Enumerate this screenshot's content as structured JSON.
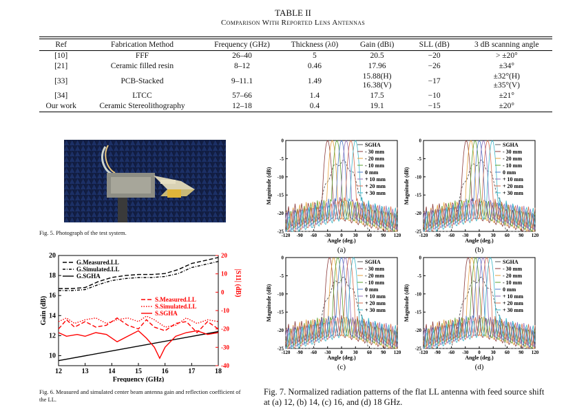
{
  "table": {
    "label": "TABLE II",
    "title": "Comparison With Reported Lens Antennas",
    "headers": [
      "Ref",
      "Fabrication Method",
      "Frequency (GHz)",
      "Thickness (λ0)",
      "Gain (dBi)",
      "SLL (dB)",
      "3 dB scanning angle"
    ],
    "rows": [
      {
        "ref": "[10]",
        "method": "FFF",
        "freq": "26–40",
        "thick": "5",
        "gain": "20.5",
        "sll": "−20",
        "scan": "> ±20°"
      },
      {
        "ref": "[21]",
        "method": "Ceramic filled resin",
        "freq": "8–12",
        "thick": "0.46",
        "gain": "17.96",
        "sll": "−26",
        "scan": "±34°"
      },
      {
        "ref": "[33]",
        "method": "PCB-Stacked",
        "freq": "9–11.1",
        "thick": "1.49",
        "gain": "15.88(H)",
        "gain2": "16.38(V)",
        "sll": "−17",
        "scan": "±32°(H)",
        "scan2": "±35°(V)"
      },
      {
        "ref": "[34]",
        "method": "LTCC",
        "freq": "57–66",
        "thick": "1.4",
        "gain": "17.5",
        "sll": "−10",
        "scan": "±21°"
      },
      {
        "ref": "Our work",
        "method": "Ceramic Stereolithography",
        "freq": "12–18",
        "thick": "0.4",
        "gain": "19.1",
        "sll": "−15",
        "scan": "±20°"
      }
    ]
  },
  "fig5": {
    "caption": "Fig. 5.    Photograph of the test system."
  },
  "fig6": {
    "caption": "Fig. 6.   Measured and simulated center beam antenna gain and reflection coefficient of the LL."
  },
  "fig7": {
    "caption": "Fig. 7.    Normalized radiation patterns of the flat LL antenna with feed source shift at (a) 12, (b) 14, (c) 16, and (d) 18 GHz.",
    "panel_labels": [
      "(a)",
      "(b)",
      "(c)",
      "(d)"
    ]
  },
  "chart_data": [
    {
      "type": "line",
      "xlabel": "Frequency (GHz)",
      "ylabel": "Gain (dB)",
      "ylabel_right": "|S11| (dB)",
      "xlim": [
        12,
        18
      ],
      "ylim": [
        9,
        20
      ],
      "ylim_right": [
        -40,
        20
      ],
      "xticks": [
        12,
        13,
        14,
        15,
        16,
        17,
        18
      ],
      "yticks": [
        10,
        12,
        14,
        16,
        18,
        20
      ],
      "yticks_right": [
        -40,
        -30,
        -20,
        -10,
        0,
        10,
        20
      ],
      "colors": {
        "gain": "#000000",
        "s11": "#ff0000"
      },
      "series": [
        {
          "name": "G.Measured.LL",
          "axis": "left",
          "style": "dash",
          "x": [
            12,
            12.5,
            13,
            13.5,
            14,
            14.5,
            15,
            15.5,
            16,
            16.5,
            17,
            17.5,
            18
          ],
          "y": [
            16.7,
            16.7,
            16.8,
            17.4,
            17.8,
            18.0,
            18.1,
            18.1,
            18.2,
            18.6,
            19.2,
            19.5,
            19.8
          ]
        },
        {
          "name": "G.Simulated.LL",
          "axis": "left",
          "style": "dashdot",
          "x": [
            12,
            12.5,
            13,
            13.5,
            14,
            14.5,
            15,
            15.5,
            16,
            16.5,
            17,
            17.5,
            18
          ],
          "y": [
            16.5,
            16.5,
            16.6,
            17.1,
            17.5,
            17.7,
            17.8,
            17.8,
            17.9,
            18.2,
            18.8,
            19.1,
            19.4
          ]
        },
        {
          "name": "G.SGHA",
          "axis": "left",
          "style": "solid",
          "x": [
            12,
            18
          ],
          "y": [
            9.5,
            12.4
          ]
        },
        {
          "name": "S.Measured.LL",
          "axis": "right",
          "style": "dash",
          "x": [
            12,
            12.3,
            12.6,
            13,
            13.4,
            13.8,
            14.2,
            14.6,
            15,
            15.3,
            15.6,
            16,
            16.4,
            16.8,
            17.2,
            17.6,
            18
          ],
          "y": [
            -20,
            -15,
            -19,
            -16,
            -19,
            -18,
            -14,
            -18,
            -20,
            -15,
            -19,
            -21,
            -17,
            -16,
            -22,
            -16,
            -20
          ]
        },
        {
          "name": "S.Simulated.LL",
          "axis": "right",
          "style": "dot",
          "x": [
            12,
            12.3,
            12.6,
            13,
            13.4,
            13.8,
            14.2,
            14.6,
            15,
            15.3,
            15.6,
            16,
            16.4,
            16.8,
            17.2,
            17.6,
            18
          ],
          "y": [
            -16,
            -14,
            -17,
            -15,
            -14,
            -17,
            -15,
            -14,
            -16,
            -13,
            -15,
            -19,
            -18,
            -14,
            -17,
            -15,
            -16
          ]
        },
        {
          "name": "S.SGHA",
          "axis": "right",
          "style": "solid",
          "x": [
            12,
            12.3,
            12.7,
            13,
            13.4,
            13.8,
            14.2,
            14.6,
            15,
            15.3,
            15.6,
            15.8,
            16,
            16.4,
            16.8,
            17.2,
            17.6,
            18
          ],
          "y": [
            -22,
            -24,
            -23,
            -24,
            -22,
            -23,
            -27,
            -24,
            -21,
            -25,
            -30,
            -36,
            -30,
            -24,
            -22,
            -21,
            -23,
            -22
          ]
        }
      ]
    },
    {
      "type": "line",
      "panel": "(a)",
      "xlabel": "Angle (deg.)",
      "ylabel": "Magnitude (dB)",
      "xlim": [
        -120,
        120
      ],
      "ylim": [
        -25,
        0
      ],
      "xticks": [
        -120,
        -90,
        -60,
        -30,
        0,
        30,
        60,
        90,
        120
      ],
      "yticks": [
        0,
        -5,
        -10,
        -15,
        -20,
        -25
      ],
      "peak_angles": [
        -30,
        -20,
        -10,
        0,
        10,
        20,
        30
      ],
      "legend": [
        "SGHA",
        "- 30 mm",
        "- 20 mm",
        "- 10 mm",
        "0 mm",
        "+ 10 mm",
        "+ 20 mm",
        "+ 30 mm"
      ],
      "colors": [
        "#555555",
        "#8b3a3a",
        "#e6a23c",
        "#5aa02c",
        "#4c78c8",
        "#8e6bb8",
        "#d56a4a",
        "#3ab5c6"
      ]
    },
    {
      "type": "line",
      "panel": "(b)",
      "xlabel": "Angle (deg.)",
      "ylabel": "Magnitude (dB)",
      "xlim": [
        -120,
        120
      ],
      "ylim": [
        -25,
        0
      ],
      "xticks": [
        -120,
        -90,
        -60,
        -30,
        0,
        30,
        60,
        90,
        120
      ],
      "yticks": [
        0,
        -5,
        -10,
        -15,
        -20,
        -25
      ],
      "peak_angles": [
        -28,
        -18,
        -9,
        0,
        9,
        18,
        28
      ],
      "legend": [
        "SGHA",
        "- 30 mm",
        "- 20 mm",
        "- 10 mm",
        "0 mm",
        "+ 10 mm",
        "+ 20 mm",
        "+ 30 mm"
      ],
      "colors": [
        "#555555",
        "#8b3a3a",
        "#e6a23c",
        "#5aa02c",
        "#4c78c8",
        "#8e6bb8",
        "#d56a4a",
        "#3ab5c6"
      ]
    },
    {
      "type": "line",
      "panel": "(c)",
      "xlabel": "Angle (deg.)",
      "ylabel": "Magnitude (dB)",
      "xlim": [
        -120,
        120
      ],
      "ylim": [
        -25,
        0
      ],
      "xticks": [
        -120,
        -90,
        -60,
        -30,
        0,
        30,
        60,
        90,
        120
      ],
      "yticks": [
        0,
        -5,
        -10,
        -15,
        -20,
        -25
      ],
      "peak_angles": [
        -26,
        -17,
        -8,
        0,
        8,
        17,
        26
      ],
      "legend": [
        "SGHA",
        "- 30 mm",
        "- 20 mm",
        "- 10 mm",
        "0 mm",
        "+ 10 mm",
        "+ 20 mm",
        "+ 30 mm"
      ],
      "colors": [
        "#555555",
        "#8b3a3a",
        "#e6a23c",
        "#5aa02c",
        "#4c78c8",
        "#8e6bb8",
        "#d56a4a",
        "#3ab5c6"
      ]
    },
    {
      "type": "line",
      "panel": "(d)",
      "xlabel": "Angle (deg.)",
      "ylabel": "Magnitude (dB)",
      "xlim": [
        -120,
        120
      ],
      "ylim": [
        -25,
        0
      ],
      "xticks": [
        -120,
        -90,
        -60,
        -30,
        0,
        30,
        60,
        90,
        120
      ],
      "yticks": [
        0,
        -5,
        -10,
        -15,
        -20,
        -25
      ],
      "peak_angles": [
        -24,
        -16,
        -8,
        0,
        8,
        16,
        24
      ],
      "legend": [
        "SGHA",
        "- 30 mm",
        "- 20 mm",
        "- 10 mm",
        "0 mm",
        "+ 10 mm",
        "+ 20 mm",
        "+ 30 mm"
      ],
      "colors": [
        "#555555",
        "#8b3a3a",
        "#e6a23c",
        "#5aa02c",
        "#4c78c8",
        "#8e6bb8",
        "#d56a4a",
        "#3ab5c6"
      ]
    }
  ]
}
